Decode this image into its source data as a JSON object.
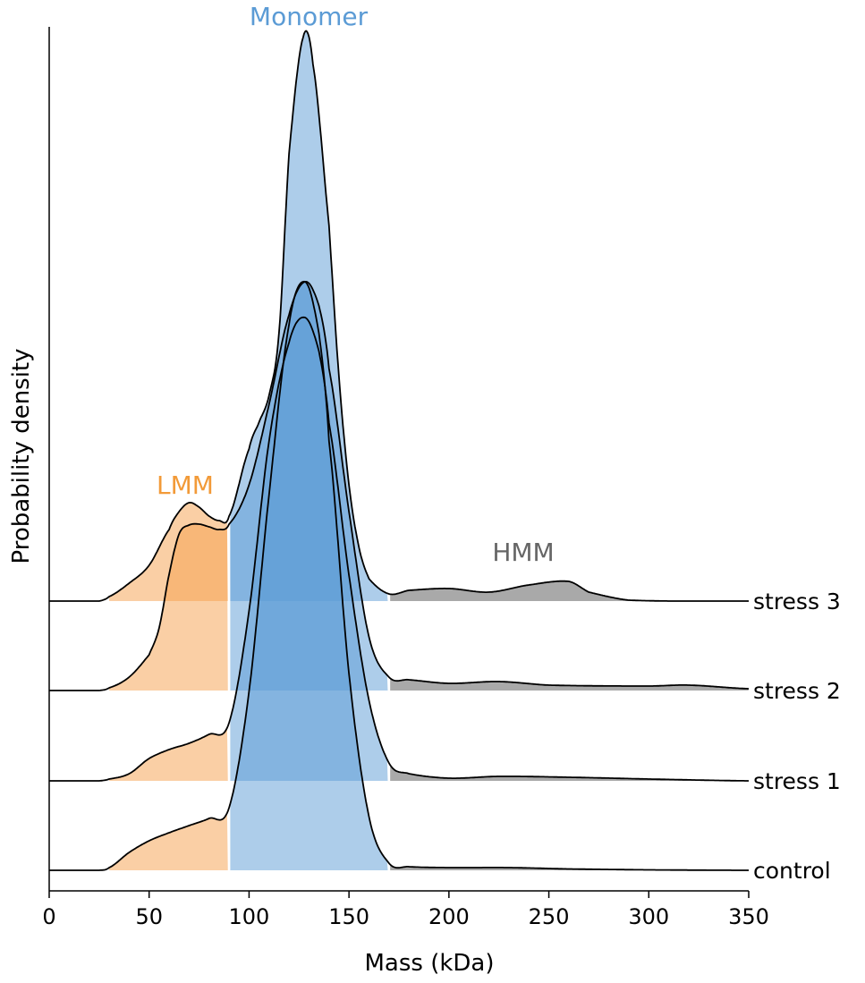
{
  "chart_data": {
    "type": "ridgeline density",
    "xlabel": "Mass (kDa)",
    "ylabel": "Probability density",
    "xlim": [
      0,
      350
    ],
    "xticks": [
      0,
      50,
      100,
      150,
      200,
      250,
      300,
      350
    ],
    "grid": false,
    "regions": [
      {
        "name": "LMM",
        "range": [
          30,
          90
        ],
        "color": "#f5a04c",
        "label_color": "#f29a38"
      },
      {
        "name": "Monomer",
        "range": [
          90,
          170
        ],
        "color": "#5b9bd5",
        "label_color": "#5b9bd5"
      },
      {
        "name": "HMM",
        "range": [
          170,
          350
        ],
        "color": "#8c8c8c",
        "label_color": "#666666"
      }
    ],
    "series": [
      {
        "name": "control",
        "x": [
          0,
          25,
          30,
          40,
          50,
          60,
          70,
          80,
          90,
          100,
          110,
          120,
          128,
          135,
          140,
          150,
          160,
          170,
          180,
          200,
          230,
          260,
          300,
          350
        ],
        "y": [
          0,
          0,
          0.3,
          2.0,
          3.3,
          4.2,
          5.0,
          5.8,
          7.0,
          20,
          42,
          61,
          65.8,
          60,
          48,
          22,
          6,
          0.8,
          0.4,
          0.3,
          0.3,
          0.15,
          0.05,
          0
        ]
      },
      {
        "name": "stress 1",
        "x": [
          0,
          25,
          30,
          40,
          50,
          60,
          70,
          80,
          90,
          100,
          110,
          120,
          128,
          135,
          140,
          150,
          160,
          170,
          180,
          200,
          225,
          260,
          300,
          350
        ],
        "y": [
          0,
          0,
          0.2,
          0.8,
          2.5,
          3.5,
          4.2,
          5.2,
          6.5,
          19,
          38,
          49,
          51.8,
          48,
          40,
          23,
          9,
          2.0,
          0.8,
          0.3,
          0.5,
          0.4,
          0.2,
          0
        ]
      },
      {
        "name": "stress 2",
        "x": [
          0,
          25,
          30,
          40,
          50,
          55,
          60,
          65,
          70,
          75,
          80,
          85,
          90,
          100,
          110,
          120,
          128,
          135,
          140,
          150,
          160,
          170,
          180,
          200,
          225,
          250,
          300,
          320,
          350
        ],
        "y": [
          0,
          0,
          0.3,
          1.5,
          4.0,
          7.0,
          13,
          17.5,
          18.5,
          18.6,
          18.3,
          18,
          18.6,
          23,
          32,
          42,
          45.7,
          43,
          36,
          20,
          6,
          1.5,
          1.2,
          0.8,
          1.0,
          0.6,
          0.5,
          0.6,
          0.2
        ]
      },
      {
        "name": "stress 3",
        "x": [
          0,
          25,
          30,
          40,
          50,
          60,
          65,
          70,
          75,
          80,
          85,
          90,
          100,
          105,
          110,
          115,
          120,
          127,
          132,
          140,
          145,
          150,
          155,
          160,
          170,
          180,
          200,
          220,
          240,
          260,
          270,
          290,
          350
        ],
        "y": [
          0,
          0,
          0.5,
          2.0,
          4.0,
          8.0,
          10,
          11,
          10.5,
          9.5,
          9.0,
          9.5,
          17,
          20,
          23,
          30,
          50,
          63,
          60,
          42,
          25,
          13,
          6,
          2.5,
          0.8,
          1.2,
          1.4,
          1.0,
          1.8,
          2.2,
          1.0,
          0.1,
          0
        ]
      }
    ]
  }
}
